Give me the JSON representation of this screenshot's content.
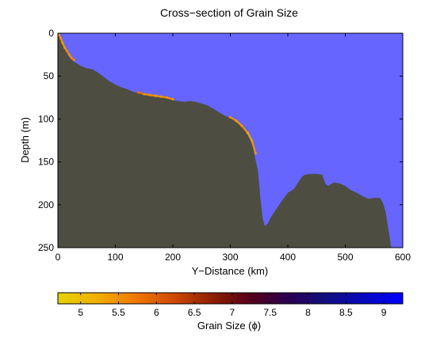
{
  "chart_data": {
    "type": "area",
    "title": "Cross−section of Grain Size",
    "xlabel": "Y−Distance (km)",
    "ylabel": "Depth (m)",
    "xlim": [
      0,
      600
    ],
    "ylim": [
      0,
      250
    ],
    "y_reversed": true,
    "xticks": [
      0,
      100,
      200,
      300,
      400,
      500,
      600
    ],
    "yticks": [
      0,
      50,
      100,
      150,
      200,
      250
    ],
    "grid": false,
    "colors": {
      "water": "#6666ff",
      "seabed": "#4d4d42",
      "frame": "#000000"
    },
    "seabed_profile": {
      "x": [
        0,
        3,
        6,
        9,
        12,
        15,
        18,
        22,
        26,
        30,
        40,
        50,
        60,
        70,
        80,
        90,
        100,
        110,
        120,
        130,
        140,
        150,
        160,
        170,
        180,
        190,
        200,
        210,
        220,
        230,
        240,
        250,
        260,
        270,
        280,
        290,
        300,
        310,
        320,
        330,
        335,
        340,
        344,
        348,
        352,
        356,
        360,
        365,
        370,
        375,
        380,
        390,
        400,
        410,
        420,
        425,
        430,
        440,
        450,
        460,
        465,
        470,
        480,
        490,
        500,
        510,
        520,
        530,
        540,
        550,
        560,
        565,
        570,
        573,
        580,
        600
      ],
      "depth": [
        0,
        3,
        7,
        12,
        18,
        22,
        26,
        30,
        32,
        34,
        38,
        41,
        42,
        46,
        51,
        56,
        60,
        63,
        65,
        68,
        70,
        72,
        73,
        74,
        75,
        76,
        78,
        79,
        80,
        79,
        80,
        82,
        84,
        88,
        92,
        96,
        99,
        103,
        109,
        118,
        125,
        135,
        148,
        160,
        190,
        215,
        225,
        222,
        215,
        210,
        205,
        195,
        186,
        182,
        172,
        167,
        165,
        164,
        164,
        165,
        175,
        178,
        174,
        175,
        178,
        183,
        186,
        190,
        193,
        192,
        192,
        197,
        208,
        220,
        250,
        250
      ]
    },
    "grain_size_overlay": {
      "x": [
        2,
        5,
        8,
        12,
        16,
        20,
        24,
        28,
        140,
        150,
        160,
        170,
        180,
        190,
        200,
        300,
        310,
        320,
        330,
        338,
        344
      ],
      "depth": [
        2,
        6,
        11,
        17,
        21,
        25,
        29,
        31,
        69,
        71,
        72,
        73,
        74,
        75,
        77,
        98,
        102,
        108,
        116,
        126,
        140
      ],
      "value": [
        5.5,
        5.5,
        5.4,
        5.5,
        5.6,
        5.5,
        5.7,
        5.5,
        5.8,
        5.5,
        5.5,
        5.4,
        5.5,
        5.5,
        5.4,
        5.5,
        5.4,
        5.5,
        5.3,
        5.5,
        5.4
      ]
    },
    "colorbar": {
      "label": "Grain Size (ϕ)",
      "range": [
        4.7,
        9.25
      ],
      "ticks": [
        5,
        5.5,
        6,
        6.5,
        7,
        7.5,
        8,
        8.5,
        9
      ],
      "tick_labels": [
        "5",
        "5.5",
        "6",
        "6.5",
        "7",
        "7.5",
        "8",
        "8.5",
        "9"
      ],
      "gradient": [
        "#e6d300",
        "#f0b000",
        "#f07a00",
        "#d04a00",
        "#902000",
        "#550018",
        "#2a0050",
        "#101080",
        "#0808c0",
        "#0000ff"
      ]
    }
  }
}
